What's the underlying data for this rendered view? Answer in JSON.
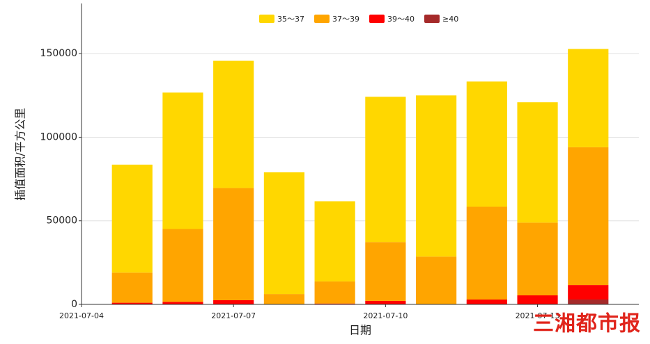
{
  "chart_data": {
    "type": "bar",
    "stacked": true,
    "x": [
      "2021-07-05",
      "2021-07-06",
      "2021-07-07",
      "2021-07-08",
      "2021-07-09",
      "2021-07-10",
      "2021-07-11",
      "2021-07-12",
      "2021-07-13",
      "2021-07-14"
    ],
    "xlim": [
      "2021-07-04",
      "2021-07-15"
    ],
    "xticks": [
      "2021-07-04",
      "2021-07-07",
      "2021-07-10",
      "2021-07-13"
    ],
    "series": [
      {
        "name": "≥40",
        "color": "#a52a2a",
        "values": [
          0,
          0,
          0,
          0,
          0,
          0,
          0,
          0,
          0,
          2900
        ]
      },
      {
        "name": "39～40",
        "color": "#ff0000",
        "values": [
          1000,
          1500,
          2500,
          0,
          500,
          2100,
          0,
          2900,
          5400,
          8700
        ]
      },
      {
        "name": "37～39",
        "color": "#ffa500",
        "values": [
          18000,
          43600,
          67100,
          6200,
          13200,
          35200,
          28600,
          55500,
          43500,
          82400
        ]
      },
      {
        "name": "35～37",
        "color": "#ffd700",
        "values": [
          64600,
          81600,
          76100,
          72800,
          48000,
          86900,
          96400,
          74900,
          72000,
          58800
        ]
      }
    ],
    "legend_order": [
      3,
      2,
      1,
      0
    ],
    "ylim": [
      0,
      180000
    ],
    "yticks": [
      0,
      50000,
      100000,
      150000
    ],
    "grid": true,
    "xlabel": "日期",
    "ylabel": "插值面积/平方公里",
    "watermark": "三湘都市报"
  }
}
